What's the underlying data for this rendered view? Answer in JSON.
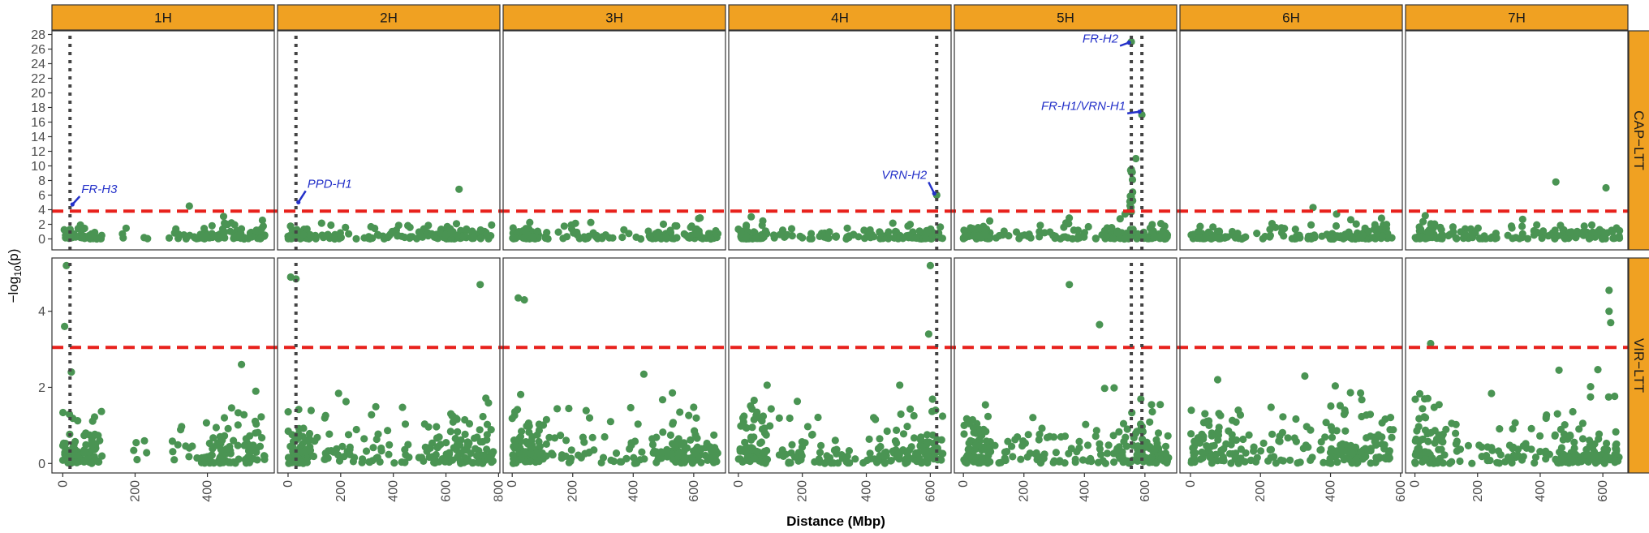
{
  "chart_data": {
    "type": "scatter",
    "subtype": "faceted manhattan plot",
    "xlabel": "Distance (Mbp)",
    "ylabel": "-log10(p)",
    "colors": {
      "points": "#4a9453",
      "threshold": "#e8211c",
      "gene_marker_line": "#444444",
      "annotation": "#2431c9",
      "strip_fill": "#f0a122",
      "panel_border": "#333333"
    },
    "columns": [
      {
        "label": "1H",
        "xlim": [
          -30,
          585
        ],
        "xticks": [
          0,
          200,
          400
        ],
        "gene_line_x": 20
      },
      {
        "label": "2H",
        "xlim": [
          -40,
          805
        ],
        "xticks": [
          0,
          200,
          400,
          600,
          800
        ],
        "gene_line_x": 30
      },
      {
        "label": "3H",
        "xlim": [
          -30,
          705
        ],
        "xticks": [
          0,
          200,
          400,
          600
        ],
        "gene_line_x": null
      },
      {
        "label": "4H",
        "xlim": [
          -30,
          665
        ],
        "xticks": [
          0,
          200,
          400,
          600
        ],
        "gene_line_x": 620
      },
      {
        "label": "5H",
        "xlim": [
          -30,
          705
        ],
        "xticks": [
          0,
          200,
          400,
          600
        ],
        "gene_line_x": [
          555,
          590
        ]
      },
      {
        "label": "6H",
        "xlim": [
          -30,
          605
        ],
        "xticks": [
          0,
          200,
          400,
          600
        ],
        "gene_line_x": null
      },
      {
        "label": "7H",
        "xlim": [
          -30,
          680
        ],
        "xticks": [
          0,
          200,
          400,
          600
        ],
        "gene_line_x": null
      }
    ],
    "rows": [
      {
        "label": "CAP−LTT",
        "ylim": [
          -1.5,
          28.5
        ],
        "yticks": [
          0,
          2,
          4,
          6,
          8,
          10,
          12,
          14,
          16,
          18,
          20,
          22,
          24,
          26,
          28
        ],
        "threshold": 3.8
      },
      {
        "label": "VIR−LTT",
        "ylim": [
          -0.25,
          5.4
        ],
        "yticks": [
          0,
          2,
          4
        ],
        "threshold": 3.05
      }
    ],
    "annotations": [
      {
        "row": 0,
        "col": 0,
        "text": "FR-H3",
        "x": 20,
        "y": 4.5
      },
      {
        "row": 0,
        "col": 1,
        "text": "PPD-H1",
        "x": 30,
        "y": 4.8
      },
      {
        "row": 0,
        "col": 3,
        "text": "VRN-H2",
        "x": 620,
        "y": 6.0
      },
      {
        "row": 0,
        "col": 4,
        "text": "FR-H2",
        "x": 555,
        "y": 27
      },
      {
        "row": 0,
        "col": 4,
        "text": "FR-H1/VRN-H1",
        "x": 590,
        "y": 17.2
      }
    ],
    "notable_points": [
      {
        "row": 0,
        "col": 4,
        "x": 555,
        "y": 27.0
      },
      {
        "row": 0,
        "col": 4,
        "x": 590,
        "y": 17.0
      },
      {
        "row": 0,
        "col": 4,
        "x": 570,
        "y": 11.0
      },
      {
        "row": 0,
        "col": 4,
        "x": 555,
        "y": 9.5
      },
      {
        "row": 0,
        "col": 1,
        "x": 650,
        "y": 6.8
      },
      {
        "row": 0,
        "col": 3,
        "x": 620,
        "y": 6.0
      },
      {
        "row": 0,
        "col": 6,
        "x": 450,
        "y": 7.8
      },
      {
        "row": 0,
        "col": 6,
        "x": 610,
        "y": 7.0
      },
      {
        "row": 0,
        "col": 0,
        "x": 350,
        "y": 4.5
      },
      {
        "row": 0,
        "col": 5,
        "x": 350,
        "y": 4.3
      },
      {
        "row": 1,
        "col": 0,
        "x": 10,
        "y": 5.2
      },
      {
        "row": 1,
        "col": 0,
        "x": 5,
        "y": 3.6
      },
      {
        "row": 1,
        "col": 1,
        "x": 10,
        "y": 4.9
      },
      {
        "row": 1,
        "col": 1,
        "x": 30,
        "y": 4.85
      },
      {
        "row": 1,
        "col": 1,
        "x": 730,
        "y": 4.7
      },
      {
        "row": 1,
        "col": 2,
        "x": 20,
        "y": 4.35
      },
      {
        "row": 1,
        "col": 2,
        "x": 40,
        "y": 4.3
      },
      {
        "row": 1,
        "col": 3,
        "x": 600,
        "y": 5.2
      },
      {
        "row": 1,
        "col": 3,
        "x": 595,
        "y": 3.4
      },
      {
        "row": 1,
        "col": 4,
        "x": 350,
        "y": 4.7
      },
      {
        "row": 1,
        "col": 4,
        "x": 450,
        "y": 3.65
      },
      {
        "row": 1,
        "col": 6,
        "x": 620,
        "y": 4.55
      },
      {
        "row": 1,
        "col": 6,
        "x": 620,
        "y": 4.0
      },
      {
        "row": 1,
        "col": 6,
        "x": 625,
        "y": 3.7
      },
      {
        "row": 1,
        "col": 6,
        "x": 50,
        "y": 3.15
      }
    ]
  }
}
